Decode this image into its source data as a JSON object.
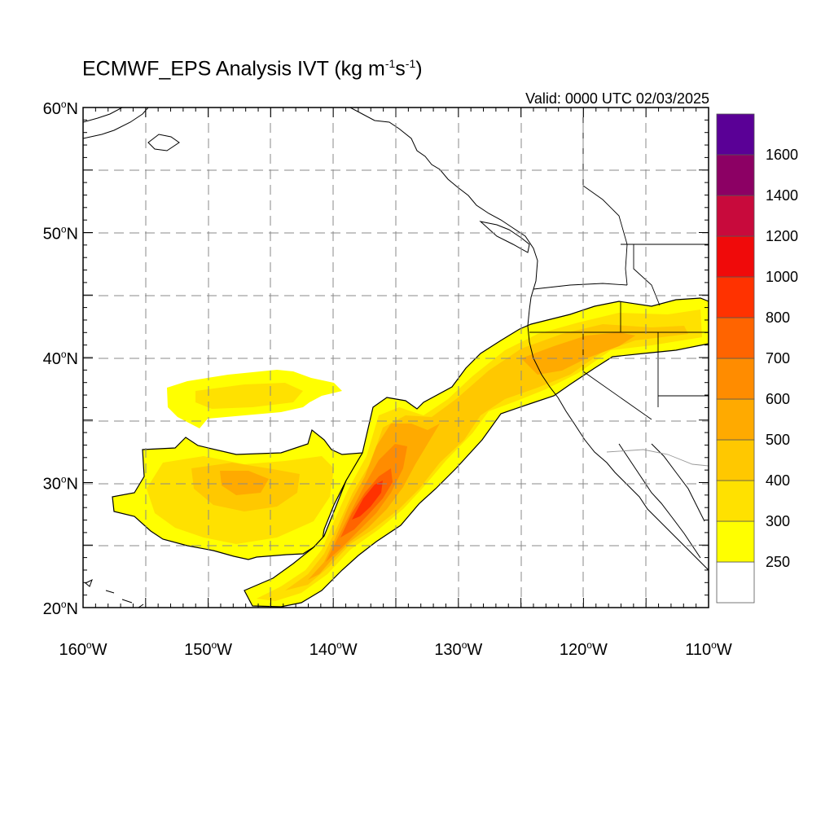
{
  "title": {
    "main": "ECMWF_EPS Analysis IVT (kg m",
    "exp1": "-1",
    "mid": "s",
    "exp2": "-1",
    "close": ")"
  },
  "valid": "Valid: 0000 UTC 02/03/2025",
  "map": {
    "lon_range": [
      -160,
      -110
    ],
    "lat_range": [
      20,
      60
    ],
    "lat_ticks": [
      {
        "value": 60,
        "num": "60",
        "deg": "o",
        "hemi": "N"
      },
      {
        "value": 50,
        "num": "50",
        "deg": "o",
        "hemi": "N"
      },
      {
        "value": 40,
        "num": "40",
        "deg": "o",
        "hemi": "N"
      },
      {
        "value": 30,
        "num": "30",
        "deg": "o",
        "hemi": "N"
      },
      {
        "value": 20,
        "num": "20",
        "deg": "o",
        "hemi": "N"
      }
    ],
    "lon_ticks": [
      {
        "value": -160,
        "num": "160",
        "deg": "o",
        "hemi": "W"
      },
      {
        "value": -150,
        "num": "150",
        "deg": "o",
        "hemi": "W"
      },
      {
        "value": -140,
        "num": "140",
        "deg": "o",
        "hemi": "W"
      },
      {
        "value": -130,
        "num": "130",
        "deg": "o",
        "hemi": "W"
      },
      {
        "value": -120,
        "num": "120",
        "deg": "o",
        "hemi": "W"
      },
      {
        "value": -110,
        "num": "110",
        "deg": "o",
        "hemi": "W"
      }
    ],
    "grid": "dashed every 5 degrees"
  },
  "colorbar": {
    "levels": [
      "250",
      "300",
      "400",
      "500",
      "600",
      "700",
      "800",
      "1000",
      "1200",
      "1400",
      "1600"
    ],
    "colors": [
      "#ffffff",
      "#ffff00",
      "#ffe100",
      "#ffc800",
      "#ffaa00",
      "#ff8c00",
      "#ff6400",
      "#ff3200",
      "#f00a0a",
      "#c80a3c",
      "#8c0064",
      "#5a0096"
    ]
  }
}
